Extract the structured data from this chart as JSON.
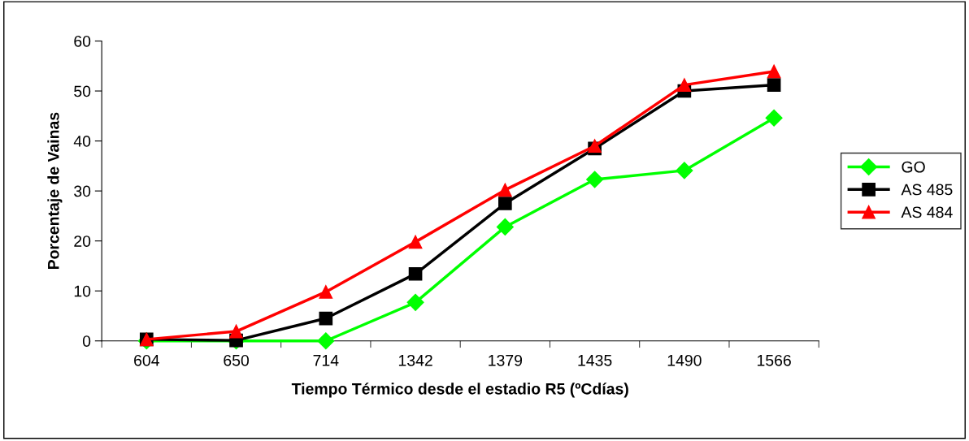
{
  "chart_data": {
    "type": "line",
    "xlabel": "Tiempo Térmico desde el estadio R5 (ºCdías)",
    "ylabel": "Porcentaje de Vainas",
    "categories": [
      "604",
      "650",
      "714",
      "1342",
      "1379",
      "1435",
      "1490",
      "1566"
    ],
    "ylim": [
      0,
      60
    ],
    "yticks": [
      0,
      10,
      20,
      30,
      40,
      50,
      60
    ],
    "grid": false,
    "legend": "right",
    "line_style": "solid",
    "series": [
      {
        "name": "GO",
        "color": "#00ff00",
        "marker": "diamond",
        "values": [
          0,
          0,
          0,
          7.7,
          22.8,
          32.3,
          34.1,
          44.6
        ]
      },
      {
        "name": "AS 485",
        "color": "#000000",
        "marker": "square",
        "values": [
          0.3,
          0.1,
          4.5,
          13.4,
          27.5,
          38.5,
          50.0,
          51.2
        ]
      },
      {
        "name": "AS 484",
        "color": "#ff0000",
        "marker": "triangle",
        "values": [
          0.3,
          1.9,
          9.8,
          19.8,
          30.2,
          39.0,
          51.2,
          53.9
        ]
      }
    ]
  }
}
